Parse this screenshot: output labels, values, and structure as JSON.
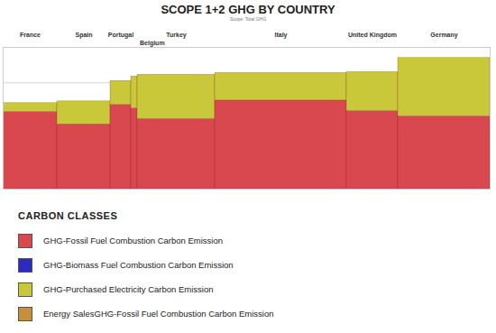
{
  "chart_data": {
    "type": "bar",
    "stacked": true,
    "title": "SCOPE 1+2 GHG BY COUNTRY",
    "subtitle": "Scope: Total GHG",
    "categories": [
      "France",
      "Spain",
      "Portugal",
      "Belgium",
      "Turkey",
      "Italy",
      "United Kingdom",
      "Germany"
    ],
    "widths": [
      60,
      59,
      23,
      7,
      86,
      146,
      57,
      102
    ],
    "series": [
      {
        "name": "GHG-Fossil Fuel Combustion Carbon Emission",
        "color": "#d9474f",
        "values": [
          87,
          73,
          95,
          91,
          79,
          100,
          88,
          82
        ]
      },
      {
        "name": "GHG-Biomass Fuel Combustion Carbon Emission",
        "color": "#2b2bbf",
        "values": [
          0,
          0,
          0,
          0,
          0,
          0,
          0,
          0
        ]
      },
      {
        "name": "GHG-Purchased Electricity Carbon Emission",
        "color": "#c9c83a",
        "values": [
          10,
          26,
          27,
          36,
          50,
          31,
          44,
          66
        ]
      },
      {
        "name": "Energy SalesGHG-Fossil Fuel Combustion Carbon Emission",
        "color": "#c8903a",
        "values": [
          0,
          0,
          0,
          0,
          0,
          0,
          0,
          0
        ]
      }
    ],
    "ylim": [
      0,
      160
    ],
    "yticks": [
      0,
      40,
      80,
      120,
      160
    ],
    "grid": true,
    "tick_labels": false,
    "legend": "bottom",
    "legend_title": "CARBON CLASSES"
  }
}
